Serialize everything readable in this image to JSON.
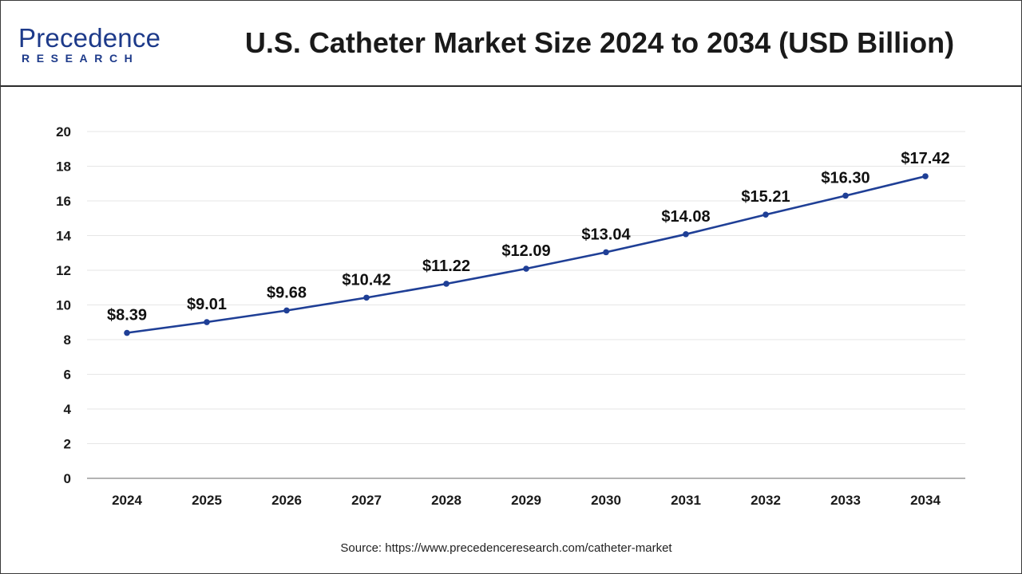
{
  "brand": {
    "logo_top": "Precedence",
    "logo_bottom": "RESEARCH",
    "primary_color": "#1d3a8a",
    "accent_color": "#3a7bd5"
  },
  "title": "U.S. Catheter Market Size 2024 to 2034 (USD Billion)",
  "source": "Source: https://www.precedenceresearch.com/catheter-market",
  "chart_data": {
    "type": "line",
    "title": "U.S. Catheter Market Size 2024 to 2034 (USD Billion)",
    "xlabel": "",
    "ylabel": "",
    "categories": [
      "2024",
      "2025",
      "2026",
      "2027",
      "2028",
      "2029",
      "2030",
      "2031",
      "2032",
      "2033",
      "2034"
    ],
    "series": [
      {
        "values": [
          8.39,
          9.01,
          9.68,
          10.42,
          11.22,
          12.09,
          13.04,
          14.08,
          15.21,
          16.3,
          17.42
        ],
        "labels": [
          "$8.39",
          "$9.01",
          "$9.68",
          "$10.42",
          "$11.22",
          "$12.09",
          "$13.04",
          "$14.08",
          "$15.21",
          "$16.30",
          "$17.42"
        ],
        "color": "#1f3f96"
      }
    ],
    "ylim": [
      0,
      20
    ],
    "yticks": [
      0,
      2,
      4,
      6,
      8,
      10,
      12,
      14,
      16,
      18,
      20
    ],
    "grid": true,
    "legend": "none"
  }
}
